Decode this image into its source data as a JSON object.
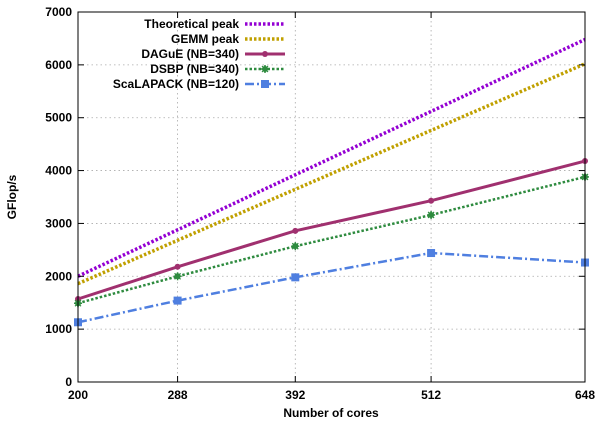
{
  "chart_data": {
    "type": "line",
    "xlabel": "Number of cores",
    "ylabel": "GFlop/s",
    "x": [
      200,
      288,
      392,
      512,
      648
    ],
    "xlim": [
      200,
      648
    ],
    "ylim": [
      0,
      7000
    ],
    "xticks": [
      "200",
      "288",
      "392",
      "512",
      "648"
    ],
    "yticks": [
      "0",
      "1000",
      "2000",
      "3000",
      "4000",
      "5000",
      "6000",
      "7000"
    ],
    "grid": true,
    "legend_position": "top-left",
    "series": [
      {
        "name": "Theoretical peak",
        "values": [
          2000,
          2880,
          3920,
          5120,
          6480
        ],
        "color": "#9400d3",
        "style": "dotted",
        "marker": "none"
      },
      {
        "name": "GEMM peak",
        "values": [
          1860,
          2680,
          3645,
          4760,
          6020
        ],
        "color": "#c0a000",
        "style": "dotted",
        "marker": "none"
      },
      {
        "name": "DAGuE (NB=340)",
        "values": [
          1570,
          2180,
          2860,
          3430,
          4180
        ],
        "color": "#a0306f",
        "style": "solid",
        "marker": "circle"
      },
      {
        "name": "DSBP (NB=340)",
        "values": [
          1490,
          2000,
          2570,
          3160,
          3880
        ],
        "color": "#2e8b3f",
        "style": "dotted",
        "marker": "star"
      },
      {
        "name": "ScaLAPACK (NB=120)",
        "values": [
          1130,
          1540,
          1980,
          2440,
          2260
        ],
        "color": "#4f7fe0",
        "style": "dashdot",
        "marker": "square"
      }
    ]
  }
}
